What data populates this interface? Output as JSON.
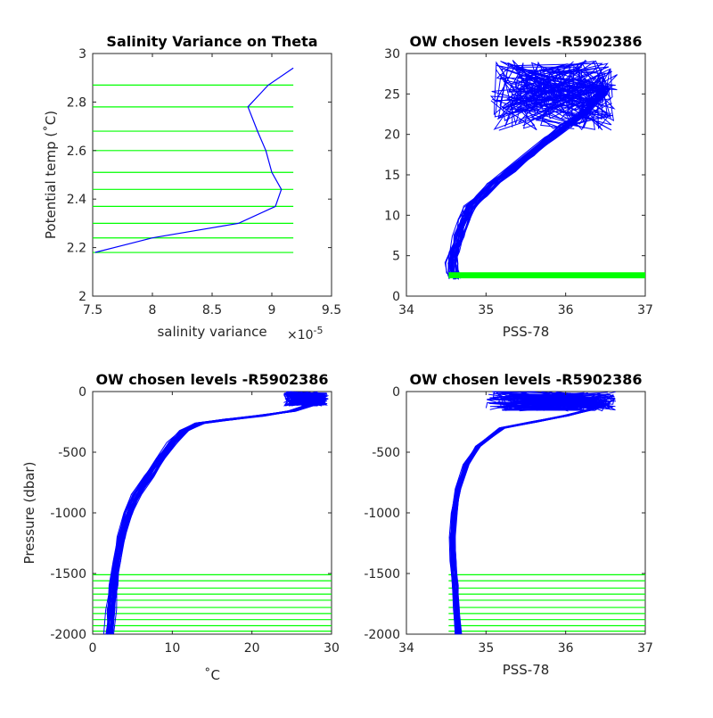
{
  "colors": {
    "profile": "#0000ff",
    "chosen_levels": "#00ff00",
    "axes": "#262626"
  },
  "chart_data": [
    {
      "id": "salvar",
      "type": "line",
      "title": "Salinity Variance on Theta",
      "xlabel": "salinity variance",
      "ylabel": "Potential temp (˚C)",
      "x_exponent_label": "×10",
      "x_exponent_value": "-5",
      "xlim": [
        7.5,
        9.5
      ],
      "ylim": [
        2,
        3
      ],
      "xticks": [
        "7.5",
        "8",
        "8.5",
        "9",
        "9.5"
      ],
      "yticks": [
        "2",
        "2.2",
        "2.4",
        "2.6",
        "2.8",
        "3"
      ],
      "x_tick_values": [
        7.5,
        8,
        8.5,
        9,
        9.5
      ],
      "y_tick_values": [
        2,
        2.2,
        2.4,
        2.6,
        2.8,
        3
      ],
      "series": [
        {
          "style": "line",
          "x": [
            7.52,
            8.0,
            8.72,
            9.03,
            9.08,
            9.0,
            8.95,
            8.88,
            8.8,
            8.97,
            9.18
          ],
          "y": [
            2.18,
            2.24,
            2.3,
            2.37,
            2.44,
            2.51,
            2.6,
            2.68,
            2.78,
            2.87,
            2.94
          ]
        }
      ],
      "hlines": [
        2.18,
        2.24,
        2.3,
        2.37,
        2.44,
        2.51,
        2.6,
        2.68,
        2.78,
        2.87
      ],
      "hline_range": [
        7.5,
        9.18
      ]
    },
    {
      "id": "ts",
      "type": "line",
      "title": "OW chosen levels -R5902386",
      "xlabel": "PSS-78",
      "ylabel": "",
      "xlim": [
        34,
        37
      ],
      "ylim": [
        0,
        30
      ],
      "xticks": [
        "34",
        "35",
        "36",
        "37"
      ],
      "yticks": [
        "0",
        "5",
        "10",
        "15",
        "20",
        "25",
        "30"
      ],
      "x_tick_values": [
        34,
        35,
        36,
        37
      ],
      "y_tick_values": [
        0,
        5,
        10,
        15,
        20,
        25,
        30
      ],
      "profiles": {
        "count": 34,
        "x_spread": 0.06,
        "y_spread": 0.3,
        "x": [
          34.62,
          34.58,
          34.57,
          34.6,
          34.66,
          34.72,
          34.8,
          34.95,
          35.1,
          35.3,
          35.55,
          35.8,
          36.0,
          36.2,
          36.35,
          36.45,
          36.5
        ],
        "y": [
          2.2,
          3.0,
          4.0,
          5.5,
          7.5,
          9.5,
          11.0,
          12.5,
          14.0,
          15.5,
          17.5,
          19.5,
          21.0,
          22.5,
          24.0,
          25.0,
          25.6
        ]
      },
      "surface_noise": {
        "x_min": 35.05,
        "x_max": 36.65,
        "y_min": 20.5,
        "y_max": 29.2
      },
      "hband": {
        "y_min": 2.2,
        "y_max": 2.95,
        "x_min": 34.53,
        "x_max": 37.0
      }
    },
    {
      "id": "ptemp",
      "type": "line",
      "title": "OW chosen levels -R5902386",
      "xlabel": "˚C",
      "ylabel": "Pressure (dbar)",
      "xlim": [
        0,
        30
      ],
      "ylim": [
        -2000,
        0
      ],
      "xticks": [
        "0",
        "10",
        "20",
        "30"
      ],
      "yticks": [
        "-2000",
        "-1500",
        "-1000",
        "-500",
        "0"
      ],
      "x_tick_values": [
        0,
        10,
        20,
        30
      ],
      "y_tick_values": [
        -2000,
        -1500,
        -1000,
        -500,
        0
      ],
      "profiles": {
        "count": 34,
        "x_spread": 0.5,
        "y_spread": 6,
        "x": [
          2.1,
          2.3,
          2.6,
          3.0,
          3.6,
          4.5,
          5.5,
          7.0,
          8.5,
          10.0,
          11.5,
          13.5,
          17.0,
          21.0,
          25.0,
          27.5,
          29.0
        ],
        "y": [
          -2000,
          -1800,
          -1600,
          -1400,
          -1200,
          -1000,
          -850,
          -700,
          -550,
          -420,
          -320,
          -260,
          -230,
          -200,
          -160,
          -110,
          -60
        ]
      },
      "surface_noise": {
        "x_min": 24.0,
        "x_max": 29.5,
        "y_min": -120,
        "y_max": 0
      },
      "hlines": [
        -1510,
        -1560,
        -1620,
        -1670,
        -1720,
        -1780,
        -1830,
        -1880,
        -1930,
        -1975
      ],
      "hline_range": [
        0,
        30
      ]
    },
    {
      "id": "psal",
      "type": "line",
      "title": "OW chosen levels -R5902386",
      "xlabel": "PSS-78",
      "ylabel": "",
      "xlim": [
        34,
        37
      ],
      "ylim": [
        -2000,
        0
      ],
      "xticks": [
        "34",
        "35",
        "36",
        "37"
      ],
      "yticks": [
        "-2000",
        "-1500",
        "-1000",
        "-500",
        "0"
      ],
      "x_tick_values": [
        34,
        35,
        36,
        37
      ],
      "y_tick_values": [
        -2000,
        -1500,
        -1000,
        -500,
        0
      ],
      "profiles": {
        "count": 34,
        "x_spread": 0.03,
        "y_spread": 5,
        "x": [
          34.65,
          34.63,
          34.61,
          34.59,
          34.58,
          34.6,
          34.65,
          34.75,
          34.9,
          35.2,
          35.6,
          36.0,
          36.3,
          36.5
        ],
        "y": [
          -2000,
          -1800,
          -1600,
          -1400,
          -1200,
          -1000,
          -800,
          -600,
          -450,
          -300,
          -250,
          -200,
          -150,
          -110
        ]
      },
      "surface_noise": {
        "x_min": 35.0,
        "x_max": 36.65,
        "y_min": -160,
        "y_max": 0
      },
      "hlines": [
        -1510,
        -1560,
        -1620,
        -1670,
        -1720,
        -1780,
        -1830,
        -1880,
        -1930,
        -1975
      ],
      "hline_range": [
        34.53,
        37.0
      ]
    }
  ]
}
